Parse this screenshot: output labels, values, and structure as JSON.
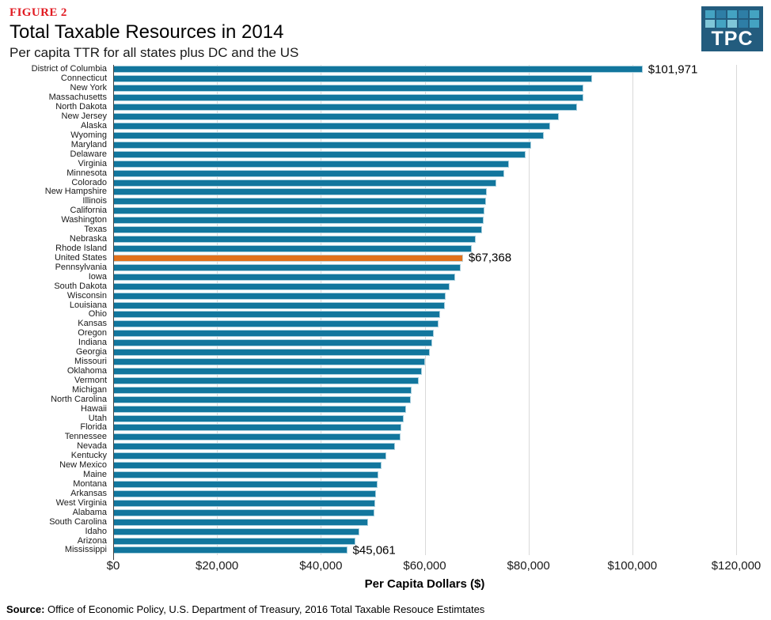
{
  "header": {
    "figure_label": "FIGURE 2",
    "title": "Total Taxable Resources in 2014",
    "subtitle": "Per capita TTR for all states plus DC and the US"
  },
  "logo": {
    "text": "TPC",
    "bg_color": "#235C7E",
    "square_colors": [
      "#44A3C2",
      "#2E7EA6",
      "#44A3C2",
      "#2E7EA6",
      "#44A3C2",
      "#7FC6D8",
      "#44A3C2",
      "#7FC6D8",
      "#2E7EA6",
      "#44A3C2"
    ]
  },
  "source": {
    "prefix": "Source:",
    "text": " Office of Economic Policy, U.S. Department of Treasury, 2016 Total Taxable Resouce Estimtates"
  },
  "chart_data": {
    "type": "bar",
    "orientation": "horizontal",
    "title": "Total Taxable Resources in 2014",
    "subtitle": "Per capita TTR for all states plus DC and the US",
    "xlabel": "Per Capita Dollars ($)",
    "ylabel": "",
    "xlim": [
      0,
      120000
    ],
    "grid": true,
    "legend": false,
    "bar_color": "#12769D",
    "highlight_color": "#E2711B",
    "x_ticks": [
      "$0",
      "$20,000",
      "$40,000",
      "$60,000",
      "$80,000",
      "$100,000",
      "$120,000"
    ],
    "x_tick_values": [
      0,
      20000,
      40000,
      60000,
      80000,
      100000,
      120000
    ],
    "states": [
      {
        "name": "District of Columbia",
        "value": 101971,
        "label": "$101,971"
      },
      {
        "name": "Connecticut",
        "value": 92300
      },
      {
        "name": "New York",
        "value": 90600
      },
      {
        "name": "Massachusetts",
        "value": 90500
      },
      {
        "name": "North Dakota",
        "value": 89400
      },
      {
        "name": "New Jersey",
        "value": 85800
      },
      {
        "name": "Alaska",
        "value": 84100
      },
      {
        "name": "Wyoming",
        "value": 83000
      },
      {
        "name": "Maryland",
        "value": 80500
      },
      {
        "name": "Delaware",
        "value": 79500
      },
      {
        "name": "Virginia",
        "value": 76300
      },
      {
        "name": "Minnesota",
        "value": 75300
      },
      {
        "name": "Colorado",
        "value": 73800
      },
      {
        "name": "New Hampshire",
        "value": 71900
      },
      {
        "name": "Illinois",
        "value": 71800
      },
      {
        "name": "California",
        "value": 71500
      },
      {
        "name": "Washington",
        "value": 71400
      },
      {
        "name": "Texas",
        "value": 71000
      },
      {
        "name": "Nebraska",
        "value": 69800
      },
      {
        "name": "Rhode Island",
        "value": 69000
      },
      {
        "name": "United States",
        "value": 67368,
        "label": "$67,368",
        "highlight": true
      },
      {
        "name": "Pennsylvania",
        "value": 66900
      },
      {
        "name": "Iowa",
        "value": 65800
      },
      {
        "name": "South Dakota",
        "value": 64800
      },
      {
        "name": "Wisconsin",
        "value": 64000
      },
      {
        "name": "Louisiana",
        "value": 63900
      },
      {
        "name": "Ohio",
        "value": 63000
      },
      {
        "name": "Kansas",
        "value": 62700
      },
      {
        "name": "Oregon",
        "value": 61700
      },
      {
        "name": "Indiana",
        "value": 61500
      },
      {
        "name": "Georgia",
        "value": 61000
      },
      {
        "name": "Missouri",
        "value": 60100
      },
      {
        "name": "Oklahoma",
        "value": 59500
      },
      {
        "name": "Vermont",
        "value": 58800
      },
      {
        "name": "Michigan",
        "value": 57500
      },
      {
        "name": "North Carolina",
        "value": 57400
      },
      {
        "name": "Hawaii",
        "value": 56400
      },
      {
        "name": "Utah",
        "value": 56000
      },
      {
        "name": "Florida",
        "value": 55500
      },
      {
        "name": "Tennessee",
        "value": 55400
      },
      {
        "name": "Nevada",
        "value": 54300
      },
      {
        "name": "Kentucky",
        "value": 52600
      },
      {
        "name": "New Mexico",
        "value": 51700
      },
      {
        "name": "Maine",
        "value": 51100
      },
      {
        "name": "Montana",
        "value": 50900
      },
      {
        "name": "Arkansas",
        "value": 50600
      },
      {
        "name": "West Virginia",
        "value": 50400
      },
      {
        "name": "Alabama",
        "value": 50300
      },
      {
        "name": "South Carolina",
        "value": 49100
      },
      {
        "name": "Idaho",
        "value": 47400
      },
      {
        "name": "Arizona",
        "value": 46700
      },
      {
        "name": "Mississippi",
        "value": 45061,
        "label": "$45,061"
      }
    ]
  }
}
